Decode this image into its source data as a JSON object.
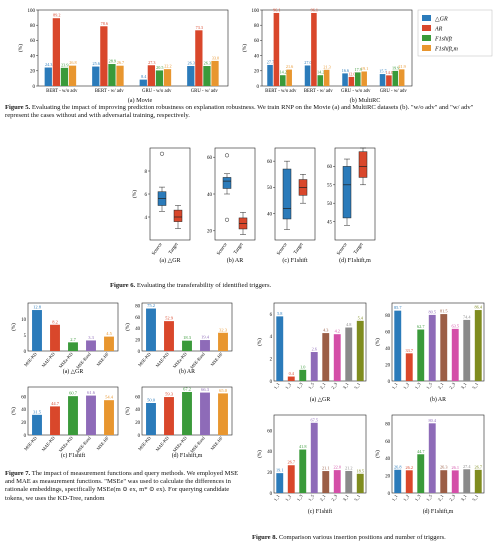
{
  "colors": {
    "blue": "#2b7bba",
    "red": "#d9472b",
    "green": "#3a9a3a",
    "purple": "#8e6bb8",
    "orange": "#e8962f",
    "brown": "#9b5e46",
    "pink": "#d44fa8",
    "gray": "#8a8a8a",
    "olive": "#7f8c1f",
    "teal": "#2aa0a8"
  },
  "fig5": {
    "caption_label": "Figure 5.",
    "caption": "Evaluating the impact of improving prediction robustness on explanation robustness. We train RNP on the Movie (a) and MultiRC datasets (b). \"w/o adv\" and \"w/ adv\" represent the cases without and with adversarial training, respectively.",
    "ylabel": "(%)",
    "legend": [
      "△GR",
      "AR",
      "F1shift",
      "F1shift,m"
    ],
    "panel_a_label": "(a) Movie",
    "panel_b_label": "(b) MultiRC",
    "categories": [
      "BERT - w/o adv",
      "BERT - w/ adv",
      "GRU - w/o adv",
      "GRU - w/ adv"
    ]
  },
  "fig6": {
    "caption_label": "Figure 6.",
    "caption": "Evaluating the transferability of identified triggers.",
    "ylabel": "(%)",
    "xticks": [
      "Source",
      "Target"
    ],
    "panels": [
      "(a) △GR",
      "(b) AR",
      "(c) F1shift",
      "(d) F1shift,m"
    ]
  },
  "fig7": {
    "caption_label": "Figure 7.",
    "caption": "The impact of measurement functions and query methods. We employed MSE and MAE as measurement functions. \"MSEe\" was used to calculate the differences in rationale embeddings, specifically MSEe(m ⊙ ex, m* ⊙ ex). For querying candidate tokens, we uses the KD-Tree, random",
    "ylabel": "(%)",
    "xticks": [
      "MSE-KD",
      "MAE-KD",
      "MSEe-KD",
      "MSE-Rand",
      "MSE-HF"
    ],
    "panels": [
      "(a) △GR",
      "(b) AR",
      "(c) F1shift",
      "(d) F1shift,m"
    ]
  },
  "fig8": {
    "caption_label": "Figure 8.",
    "caption": "Comparison various insertion positions and number of triggers.",
    "ylabel": "(%)",
    "xticks": [
      "1_1",
      "1_2",
      "1_3",
      "1_5",
      "2_1",
      "2_3",
      "3_1",
      "5_1"
    ],
    "panels": [
      "(a) △GR",
      "(b) AR",
      "(c) F1shift",
      "(d) F1shift,m"
    ]
  },
  "chart_data": [
    {
      "type": "bar",
      "id": "fig5a",
      "categories": [
        "BERT - w/o adv",
        "BERT - w/ adv",
        "GRU - w/o adv",
        "GRU - w/ adv"
      ],
      "series": [
        {
          "name": "△GR",
          "values": [
            24.3,
            25.6,
            8.4,
            26.3
          ]
        },
        {
          "name": "AR",
          "values": [
            89.2,
            78.6,
            27.3,
            73.3
          ]
        },
        {
          "name": "F1shift",
          "values": [
            23.9,
            28.9,
            20.5,
            26.3
          ]
        },
        {
          "name": "F1shift,m",
          "values": [
            26.8,
            26.7,
            22.2,
            33.0
          ]
        }
      ],
      "ylim": [
        0,
        100
      ]
    },
    {
      "type": "bar",
      "id": "fig5b",
      "categories": [
        "BERT - w/o adv",
        "BERT - w/ adv",
        "GRU - w/o adv",
        "GRU - w/ adv"
      ],
      "series": [
        {
          "name": "△GR",
          "values": [
            27.7,
            27.0,
            16.6,
            15.7
          ]
        },
        {
          "name": "AR",
          "values": [
            96.1,
            96.1,
            12.0,
            14.0
          ]
        },
        {
          "name": "F1shift",
          "values": [
            14.2,
            14.2,
            17.9,
            19.9
          ]
        },
        {
          "name": "F1shift,m",
          "values": [
            21.6,
            21.3,
            19.1,
            21.9
          ]
        }
      ],
      "ylim": [
        0,
        100
      ]
    },
    {
      "type": "box",
      "id": "fig6",
      "panels": [
        {
          "label": "(a) △GR",
          "source": {
            "min": 4.5,
            "q1": 5.0,
            "median": 5.6,
            "q3": 6.2,
            "max": 6.6,
            "outliers": [
              9.5
            ]
          },
          "target": {
            "min": 3.0,
            "q1": 3.6,
            "median": 4.0,
            "q3": 4.6,
            "max": 5.0
          }
        },
        {
          "label": "(b) AR",
          "source": {
            "min": 40,
            "q1": 43,
            "median": 47,
            "q3": 49,
            "max": 51,
            "outliers": [
              61,
              26
            ]
          },
          "target": {
            "min": 18,
            "q1": 21,
            "median": 24,
            "q3": 27,
            "max": 30
          }
        },
        {
          "label": "(c) F1shift",
          "source": {
            "min": 34,
            "q1": 38,
            "median": 42,
            "q3": 57,
            "max": 60
          },
          "target": {
            "min": 44,
            "q1": 47,
            "median": 50,
            "q3": 53,
            "max": 55
          }
        },
        {
          "label": "(d) F1shift,m",
          "source": {
            "min": 44,
            "q1": 46,
            "median": 55,
            "q3": 60,
            "max": 62
          },
          "target": {
            "min": 55,
            "q1": 57,
            "median": 60,
            "q3": 64,
            "max": 65
          }
        }
      ]
    },
    {
      "type": "bar",
      "id": "fig7",
      "categories": [
        "MSE-KD",
        "MAE-KD",
        "MSEe-KD",
        "MSE-Rand",
        "MSE-HF"
      ],
      "panels": [
        {
          "label": "(a) △GR",
          "values": [
            12.8,
            8.2,
            2.7,
            3.3,
            4.5
          ],
          "ylim": [
            0,
            15
          ]
        },
        {
          "label": "(b) AR",
          "values": [
            75.2,
            52.9,
            18.3,
            19.4,
            32.3
          ],
          "ylim": [
            0,
            85
          ]
        },
        {
          "label": "(c) F1shift",
          "values": [
            31.5,
            44.7,
            60.7,
            61.6,
            54.4
          ],
          "ylim": [
            0,
            75
          ]
        },
        {
          "label": "(d) F1shift,m",
          "values": [
            50.0,
            59.3,
            67.2,
            66.3,
            65.0
          ],
          "ylim": [
            0,
            75
          ]
        }
      ]
    },
    {
      "type": "bar",
      "id": "fig8",
      "categories": [
        "1_1",
        "1_2",
        "1_3",
        "1_5",
        "2_1",
        "2_3",
        "3_1",
        "5_1"
      ],
      "panels": [
        {
          "label": "(a) △GR",
          "values": [
            5.8,
            0.4,
            1.0,
            2.6,
            4.3,
            4.2,
            4.8,
            5.4
          ],
          "ylim": [
            0,
            7
          ]
        },
        {
          "label": "(b) AR",
          "values": [
            85.7,
            33.7,
            62.7,
            80.5,
            81.5,
            63.5,
            74.4,
            86.4
          ],
          "ylim": [
            0,
            95
          ]
        },
        {
          "label": "(c) F1shift",
          "values": [
            19.1,
            26.7,
            41.8,
            67.5,
            21.1,
            22.0,
            21.2,
            18.5
          ],
          "ylim": [
            0,
            75
          ]
        },
        {
          "label": "(d) F1shift,m",
          "values": [
            26.8,
            26.2,
            44.7,
            80.4,
            26.3,
            26.1,
            27.4,
            26.7
          ],
          "ylim": [
            0,
            90
          ]
        }
      ]
    }
  ]
}
